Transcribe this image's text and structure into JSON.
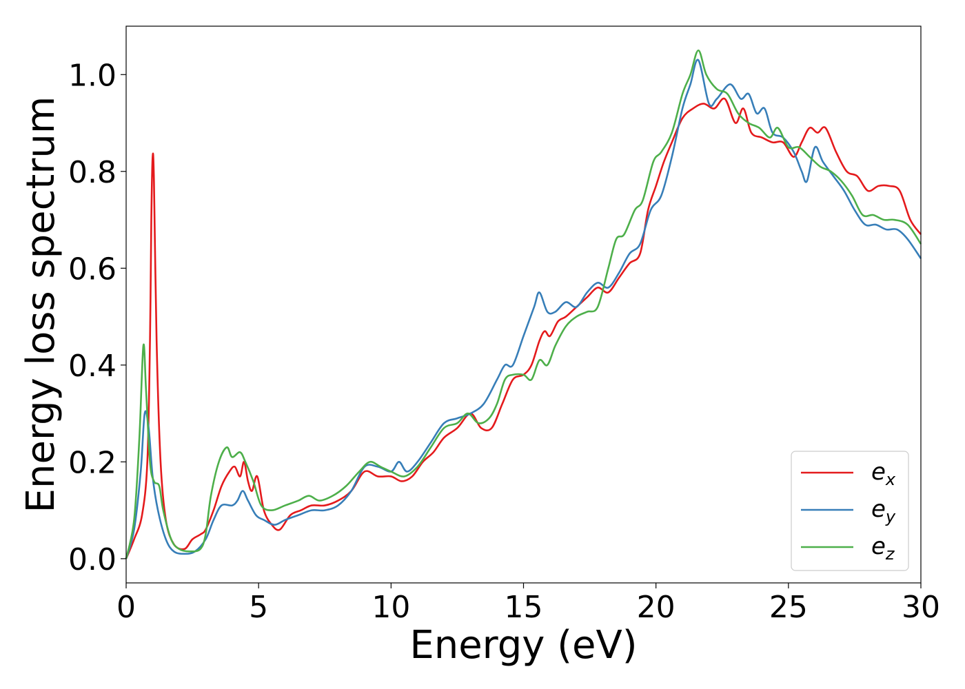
{
  "chart_data": {
    "type": "line",
    "xlabel": "Energy (eV)",
    "ylabel": "Energy loss spectrum",
    "xlim": [
      0,
      30
    ],
    "ylim": [
      -0.05,
      1.1
    ],
    "x_ticks": [
      "0",
      "5",
      "10",
      "15",
      "20",
      "25",
      "30"
    ],
    "y_ticks": [
      "0.0",
      "0.2",
      "0.4",
      "0.6",
      "0.8",
      "1.0"
    ],
    "grid": false,
    "legend_position": "lower-right",
    "series": [
      {
        "name": "e_x",
        "label_main": "e",
        "label_sub": "x",
        "color": "#e41a1c",
        "points": [
          [
            0,
            0.0
          ],
          [
            0.3,
            0.04
          ],
          [
            0.6,
            0.09
          ],
          [
            0.8,
            0.2
          ],
          [
            0.9,
            0.45
          ],
          [
            0.95,
            0.7
          ],
          [
            1.0,
            0.83
          ],
          [
            1.05,
            0.78
          ],
          [
            1.15,
            0.45
          ],
          [
            1.3,
            0.2
          ],
          [
            1.5,
            0.08
          ],
          [
            1.8,
            0.03
          ],
          [
            2.2,
            0.02
          ],
          [
            2.5,
            0.04
          ],
          [
            2.8,
            0.05
          ],
          [
            3.0,
            0.06
          ],
          [
            3.3,
            0.1
          ],
          [
            3.6,
            0.15
          ],
          [
            3.9,
            0.18
          ],
          [
            4.1,
            0.19
          ],
          [
            4.3,
            0.17
          ],
          [
            4.45,
            0.2
          ],
          [
            4.6,
            0.16
          ],
          [
            4.75,
            0.14
          ],
          [
            4.95,
            0.17
          ],
          [
            5.2,
            0.1
          ],
          [
            5.5,
            0.07
          ],
          [
            5.8,
            0.06
          ],
          [
            6.2,
            0.09
          ],
          [
            6.6,
            0.1
          ],
          [
            7.0,
            0.11
          ],
          [
            7.5,
            0.11
          ],
          [
            8.0,
            0.12
          ],
          [
            8.5,
            0.14
          ],
          [
            9.0,
            0.18
          ],
          [
            9.5,
            0.17
          ],
          [
            10.0,
            0.17
          ],
          [
            10.4,
            0.16
          ],
          [
            10.8,
            0.17
          ],
          [
            11.2,
            0.2
          ],
          [
            11.6,
            0.22
          ],
          [
            12.0,
            0.25
          ],
          [
            12.5,
            0.27
          ],
          [
            13.0,
            0.3
          ],
          [
            13.4,
            0.27
          ],
          [
            13.8,
            0.27
          ],
          [
            14.2,
            0.32
          ],
          [
            14.6,
            0.37
          ],
          [
            15.0,
            0.38
          ],
          [
            15.3,
            0.4
          ],
          [
            15.6,
            0.45
          ],
          [
            15.8,
            0.47
          ],
          [
            16.0,
            0.46
          ],
          [
            16.3,
            0.49
          ],
          [
            16.6,
            0.5
          ],
          [
            17.0,
            0.52
          ],
          [
            17.4,
            0.54
          ],
          [
            17.8,
            0.56
          ],
          [
            18.2,
            0.55
          ],
          [
            18.6,
            0.58
          ],
          [
            19.0,
            0.61
          ],
          [
            19.4,
            0.63
          ],
          [
            19.7,
            0.72
          ],
          [
            20.0,
            0.77
          ],
          [
            20.3,
            0.82
          ],
          [
            20.6,
            0.86
          ],
          [
            21.0,
            0.91
          ],
          [
            21.4,
            0.93
          ],
          [
            21.8,
            0.94
          ],
          [
            22.2,
            0.93
          ],
          [
            22.6,
            0.95
          ],
          [
            23.0,
            0.9
          ],
          [
            23.3,
            0.93
          ],
          [
            23.6,
            0.88
          ],
          [
            24.0,
            0.87
          ],
          [
            24.4,
            0.86
          ],
          [
            24.8,
            0.86
          ],
          [
            25.2,
            0.83
          ],
          [
            25.5,
            0.86
          ],
          [
            25.8,
            0.89
          ],
          [
            26.1,
            0.88
          ],
          [
            26.4,
            0.89
          ],
          [
            26.8,
            0.84
          ],
          [
            27.2,
            0.8
          ],
          [
            27.6,
            0.79
          ],
          [
            28.0,
            0.76
          ],
          [
            28.4,
            0.77
          ],
          [
            28.8,
            0.77
          ],
          [
            29.2,
            0.76
          ],
          [
            29.6,
            0.7
          ],
          [
            30.0,
            0.67
          ]
        ]
      },
      {
        "name": "e_y",
        "label_main": "e",
        "label_sub": "y",
        "color": "#377eb8",
        "points": [
          [
            0,
            0.0
          ],
          [
            0.3,
            0.06
          ],
          [
            0.55,
            0.18
          ],
          [
            0.7,
            0.3
          ],
          [
            0.85,
            0.27
          ],
          [
            1.0,
            0.17
          ],
          [
            1.2,
            0.1
          ],
          [
            1.5,
            0.04
          ],
          [
            1.8,
            0.015
          ],
          [
            2.2,
            0.01
          ],
          [
            2.6,
            0.015
          ],
          [
            3.0,
            0.04
          ],
          [
            3.3,
            0.08
          ],
          [
            3.6,
            0.11
          ],
          [
            4.0,
            0.11
          ],
          [
            4.2,
            0.12
          ],
          [
            4.4,
            0.14
          ],
          [
            4.6,
            0.12
          ],
          [
            4.9,
            0.09
          ],
          [
            5.2,
            0.08
          ],
          [
            5.6,
            0.07
          ],
          [
            6.0,
            0.08
          ],
          [
            6.5,
            0.09
          ],
          [
            7.0,
            0.1
          ],
          [
            7.5,
            0.1
          ],
          [
            8.0,
            0.11
          ],
          [
            8.5,
            0.14
          ],
          [
            9.0,
            0.19
          ],
          [
            9.5,
            0.19
          ],
          [
            10.0,
            0.18
          ],
          [
            10.3,
            0.2
          ],
          [
            10.6,
            0.18
          ],
          [
            11.0,
            0.2
          ],
          [
            11.5,
            0.24
          ],
          [
            12.0,
            0.28
          ],
          [
            12.5,
            0.29
          ],
          [
            13.0,
            0.3
          ],
          [
            13.5,
            0.32
          ],
          [
            14.0,
            0.37
          ],
          [
            14.3,
            0.4
          ],
          [
            14.6,
            0.4
          ],
          [
            15.0,
            0.46
          ],
          [
            15.4,
            0.52
          ],
          [
            15.6,
            0.55
          ],
          [
            15.9,
            0.51
          ],
          [
            16.2,
            0.51
          ],
          [
            16.6,
            0.53
          ],
          [
            17.0,
            0.52
          ],
          [
            17.4,
            0.55
          ],
          [
            17.8,
            0.57
          ],
          [
            18.2,
            0.56
          ],
          [
            18.6,
            0.59
          ],
          [
            19.0,
            0.63
          ],
          [
            19.4,
            0.65
          ],
          [
            19.8,
            0.72
          ],
          [
            20.2,
            0.75
          ],
          [
            20.6,
            0.83
          ],
          [
            21.0,
            0.93
          ],
          [
            21.3,
            0.98
          ],
          [
            21.6,
            1.03
          ],
          [
            22.0,
            0.94
          ],
          [
            22.3,
            0.95
          ],
          [
            22.8,
            0.98
          ],
          [
            23.2,
            0.95
          ],
          [
            23.5,
            0.96
          ],
          [
            23.8,
            0.92
          ],
          [
            24.1,
            0.93
          ],
          [
            24.4,
            0.88
          ],
          [
            24.8,
            0.87
          ],
          [
            25.2,
            0.84
          ],
          [
            25.5,
            0.8
          ],
          [
            25.7,
            0.78
          ],
          [
            26.0,
            0.85
          ],
          [
            26.3,
            0.82
          ],
          [
            26.7,
            0.79
          ],
          [
            27.1,
            0.76
          ],
          [
            27.5,
            0.72
          ],
          [
            27.9,
            0.69
          ],
          [
            28.3,
            0.69
          ],
          [
            28.7,
            0.68
          ],
          [
            29.1,
            0.68
          ],
          [
            29.5,
            0.66
          ],
          [
            30.0,
            0.62
          ]
        ]
      },
      {
        "name": "e_z",
        "label_main": "e",
        "label_sub": "z",
        "color": "#4daf4a",
        "points": [
          [
            0,
            0.0
          ],
          [
            0.3,
            0.08
          ],
          [
            0.5,
            0.25
          ],
          [
            0.65,
            0.44
          ],
          [
            0.75,
            0.35
          ],
          [
            0.9,
            0.2
          ],
          [
            1.05,
            0.16
          ],
          [
            1.25,
            0.15
          ],
          [
            1.4,
            0.1
          ],
          [
            1.7,
            0.04
          ],
          [
            2.0,
            0.02
          ],
          [
            2.4,
            0.015
          ],
          [
            2.8,
            0.02
          ],
          [
            3.0,
            0.05
          ],
          [
            3.2,
            0.13
          ],
          [
            3.5,
            0.2
          ],
          [
            3.8,
            0.23
          ],
          [
            4.0,
            0.21
          ],
          [
            4.3,
            0.22
          ],
          [
            4.5,
            0.2
          ],
          [
            4.8,
            0.16
          ],
          [
            5.1,
            0.11
          ],
          [
            5.5,
            0.1
          ],
          [
            6.0,
            0.11
          ],
          [
            6.5,
            0.12
          ],
          [
            6.9,
            0.13
          ],
          [
            7.3,
            0.12
          ],
          [
            7.8,
            0.13
          ],
          [
            8.3,
            0.15
          ],
          [
            8.8,
            0.18
          ],
          [
            9.2,
            0.2
          ],
          [
            9.6,
            0.19
          ],
          [
            10.0,
            0.18
          ],
          [
            10.5,
            0.17
          ],
          [
            11.0,
            0.19
          ],
          [
            11.5,
            0.23
          ],
          [
            12.0,
            0.27
          ],
          [
            12.5,
            0.28
          ],
          [
            12.9,
            0.3
          ],
          [
            13.3,
            0.28
          ],
          [
            13.7,
            0.29
          ],
          [
            14.0,
            0.32
          ],
          [
            14.3,
            0.37
          ],
          [
            14.6,
            0.38
          ],
          [
            15.0,
            0.38
          ],
          [
            15.3,
            0.37
          ],
          [
            15.6,
            0.41
          ],
          [
            15.9,
            0.4
          ],
          [
            16.2,
            0.44
          ],
          [
            16.6,
            0.48
          ],
          [
            17.0,
            0.5
          ],
          [
            17.4,
            0.51
          ],
          [
            17.8,
            0.52
          ],
          [
            18.2,
            0.6
          ],
          [
            18.5,
            0.66
          ],
          [
            18.8,
            0.67
          ],
          [
            19.2,
            0.72
          ],
          [
            19.5,
            0.74
          ],
          [
            19.9,
            0.82
          ],
          [
            20.2,
            0.84
          ],
          [
            20.6,
            0.88
          ],
          [
            21.0,
            0.96
          ],
          [
            21.3,
            1.0
          ],
          [
            21.6,
            1.05
          ],
          [
            21.9,
            1.0
          ],
          [
            22.3,
            0.97
          ],
          [
            22.7,
            0.96
          ],
          [
            23.1,
            0.92
          ],
          [
            23.5,
            0.9
          ],
          [
            23.9,
            0.89
          ],
          [
            24.3,
            0.87
          ],
          [
            24.6,
            0.89
          ],
          [
            25.0,
            0.85
          ],
          [
            25.4,
            0.85
          ],
          [
            25.8,
            0.83
          ],
          [
            26.2,
            0.81
          ],
          [
            26.6,
            0.8
          ],
          [
            27.0,
            0.78
          ],
          [
            27.4,
            0.75
          ],
          [
            27.8,
            0.71
          ],
          [
            28.2,
            0.71
          ],
          [
            28.6,
            0.7
          ],
          [
            29.0,
            0.7
          ],
          [
            29.5,
            0.69
          ],
          [
            30.0,
            0.65
          ]
        ]
      }
    ]
  }
}
